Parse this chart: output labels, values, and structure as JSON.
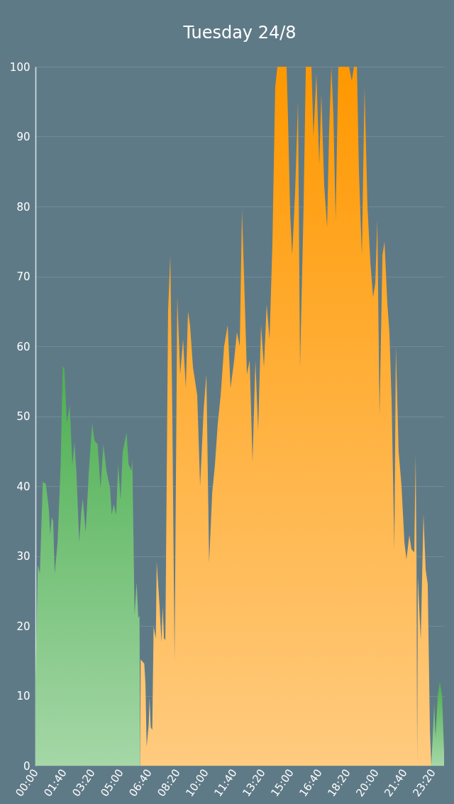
{
  "chart_data": {
    "type": "area",
    "title": "Tuesday 24/8",
    "xlim": [
      0,
      24
    ],
    "ylim": [
      0,
      100
    ],
    "yticks": [
      0,
      10,
      20,
      30,
      40,
      50,
      60,
      70,
      80,
      90,
      100
    ],
    "xticks": [
      {
        "value": 0,
        "label": "00:00"
      },
      {
        "value": 1.6667,
        "label": "01:40"
      },
      {
        "value": 3.3333,
        "label": "03:20"
      },
      {
        "value": 5,
        "label": "05:00"
      },
      {
        "value": 6.6667,
        "label": "06:40"
      },
      {
        "value": 8.3333,
        "label": "08:20"
      },
      {
        "value": 10,
        "label": "10:00"
      },
      {
        "value": 11.6667,
        "label": "11:40"
      },
      {
        "value": 13.3333,
        "label": "13:20"
      },
      {
        "value": 15,
        "label": "15:00"
      },
      {
        "value": 16.6667,
        "label": "16:40"
      },
      {
        "value": 18.3333,
        "label": "18:20"
      },
      {
        "value": 20,
        "label": "20:00"
      },
      {
        "value": 21.6667,
        "label": "21:40"
      },
      {
        "value": 23.3333,
        "label": "23:20"
      }
    ],
    "grid": "y",
    "series": [
      {
        "color": "#4caf50",
        "x": [
          0,
          0.14,
          0.26,
          0.43,
          0.61,
          0.78,
          0.87,
          0.95,
          1.04,
          1.13,
          1.3,
          1.48,
          1.6,
          1.7,
          1.84,
          2.01,
          2.17,
          2.29,
          2.4,
          2.57,
          2.69,
          2.78,
          2.95,
          3.13,
          3.33,
          3.47,
          3.65,
          3.82,
          3.99,
          4.17,
          4.38,
          4.48,
          4.6,
          4.74,
          4.86,
          5.0,
          5.12,
          5.35,
          5.47,
          5.64,
          5.69,
          5.82,
          5.94,
          6.04,
          6.11,
          6.15
        ],
        "values": [
          12,
          28.7,
          27.5,
          40.6,
          40.3,
          36.8,
          33,
          35.5,
          35,
          27.5,
          32,
          43,
          57.2,
          56.8,
          49,
          51.5,
          43,
          46.3,
          42.2,
          32,
          36.3,
          38.2,
          33.4,
          41.8,
          49,
          46.5,
          46,
          39.7,
          46,
          42.2,
          39.7,
          35.9,
          37.4,
          35.9,
          43.1,
          38,
          44.8,
          47.7,
          43.1,
          42.2,
          43.9,
          21.5,
          26.2,
          21.1,
          21.5,
          0
        ]
      },
      {
        "color": "#ff9800",
        "x": [
          6.15,
          6.18,
          6.39,
          6.46,
          6.53,
          6.65,
          6.7,
          6.77,
          6.86,
          6.94,
          7.07,
          7.12,
          7.29,
          7.4,
          7.47,
          7.55,
          7.63,
          7.79,
          7.92,
          8.04,
          8.17,
          8.33,
          8.5,
          8.67,
          8.83,
          8.96,
          9.08,
          9.25,
          9.5,
          9.67,
          9.88,
          10.04,
          10.2,
          10.38,
          10.54,
          10.71,
          10.88,
          11.08,
          11.29,
          11.46,
          11.67,
          11.83,
          12.0,
          12.13,
          12.25,
          12.42,
          12.58,
          12.75,
          12.92,
          13.08,
          13.25,
          13.42,
          13.58,
          13.75,
          13.92,
          14.08,
          14.21,
          14.75,
          14.83,
          14.96,
          15.08,
          15.25,
          15.42,
          15.54,
          15.75,
          15.88,
          16.21,
          16.33,
          16.5,
          16.67,
          16.79,
          16.96,
          17.13,
          17.25,
          17.38,
          17.5,
          17.63,
          17.79,
          18.42,
          18.58,
          18.71,
          18.88,
          19.0,
          19.17,
          19.33,
          19.5,
          19.67,
          19.83,
          19.96,
          20.08,
          20.21,
          20.38,
          20.5,
          20.67,
          20.79,
          20.92,
          21.08,
          21.17,
          21.33,
          21.5,
          21.67,
          21.79,
          21.96,
          22.08,
          22.25,
          22.33,
          22.38,
          22.42,
          22.46,
          22.63,
          22.79,
          22.92,
          23.04,
          23.17,
          23.25
        ],
        "values": [
          0,
          15.2,
          14.6,
          11.8,
          2.7,
          5.9,
          9.7,
          5.5,
          5.1,
          19.9,
          18.2,
          29.2,
          22.8,
          17.7,
          22.8,
          18.2,
          18,
          65,
          73,
          50,
          15,
          67,
          56,
          61,
          54,
          65,
          63,
          57,
          53,
          40,
          51,
          56,
          29,
          39,
          43,
          49,
          53,
          60,
          63,
          54,
          58,
          62,
          60,
          79.5,
          70,
          56,
          58,
          43.5,
          58,
          48,
          63,
          57,
          66,
          61,
          75,
          97,
          100,
          100,
          93,
          79,
          73,
          82,
          95,
          57,
          80,
          100,
          100,
          90,
          99,
          86,
          96,
          83,
          77,
          91,
          100,
          93,
          78,
          100,
          100,
          98,
          100,
          100,
          85,
          73,
          97,
          80,
          72,
          67,
          69,
          78,
          50,
          73,
          75,
          66,
          62,
          52,
          31,
          60,
          45,
          40,
          32,
          29.5,
          33,
          31,
          30.5,
          44.5,
          30,
          0,
          27,
          18,
          36,
          28,
          26,
          5,
          0
        ]
      },
      {
        "color": "#4caf50",
        "x": [
          23.25,
          23.33,
          23.42,
          23.5,
          23.63,
          23.75,
          23.88,
          24
        ],
        "values": [
          0,
          4,
          9,
          4,
          10,
          12,
          10,
          2
        ]
      }
    ]
  }
}
